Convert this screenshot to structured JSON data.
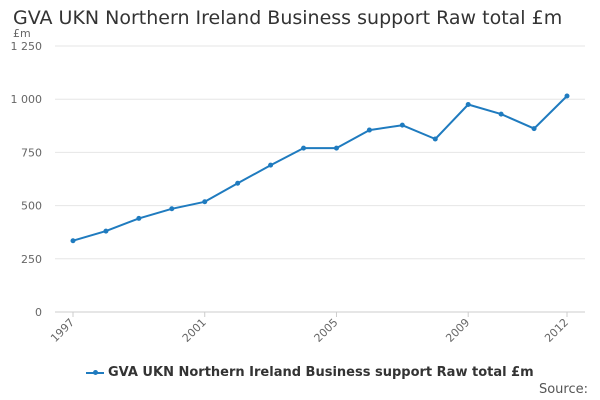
{
  "colors": {
    "series": "#1f7bbf",
    "grid": "#e6e6e6",
    "axis_text": "#666666"
  },
  "chart_data": {
    "type": "line",
    "title": "GVA UKN Northern Ireland Business support Raw total £m",
    "ylabel": "£m",
    "xlabel": "",
    "x": [
      1997,
      1998,
      1999,
      2000,
      2001,
      2002,
      2003,
      2004,
      2005,
      2006,
      2007,
      2008,
      2009,
      2010,
      2011,
      2012
    ],
    "xticks": [
      "1997",
      "2001",
      "2005",
      "2009",
      "2012"
    ],
    "ylim": [
      0,
      1250
    ],
    "yticks": [
      "0",
      "250",
      "500",
      "750",
      "1 000",
      "1 250"
    ],
    "series": [
      {
        "name": "GVA UKN Northern Ireland Business support Raw total £m",
        "values": [
          335,
          380,
          440,
          485,
          518,
          605,
          690,
          770,
          770,
          855,
          878,
          813,
          975,
          930,
          862,
          1015
        ]
      }
    ],
    "grid": true,
    "legend": "bottom"
  },
  "footer": {
    "source": "Source:"
  }
}
